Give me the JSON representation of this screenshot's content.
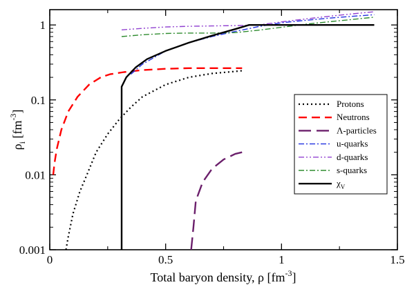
{
  "chart_data": {
    "type": "line",
    "xlabel": "Total baryon density, ρ [fm",
    "xlabel_sup": "-3",
    "xlabel_close": "]",
    "ylabel": "ρ",
    "ylabel_sub": "i",
    "ylabel_unit": " [fm",
    "ylabel_sup": "-3",
    "ylabel_close": "]",
    "xlim": [
      0,
      1.5
    ],
    "ylim": [
      0.001,
      1.6
    ],
    "yscale": "log",
    "grid": false,
    "legend_position": "right",
    "x_ticks": [
      {
        "value": 0,
        "label": "0"
      },
      {
        "value": 0.5,
        "label": "0.5"
      },
      {
        "value": 1,
        "label": "1"
      },
      {
        "value": 1.5,
        "label": "1.5"
      }
    ],
    "y_ticks": [
      {
        "value": 0.001,
        "label": "0.001"
      },
      {
        "value": 0.01,
        "label": "0.01"
      },
      {
        "value": 0.1,
        "label": "0.1"
      },
      {
        "value": 1,
        "label": "1"
      }
    ],
    "series": [
      {
        "name": "Protons",
        "legend_main": "Protons",
        "legend_sub": "",
        "color": "#000000",
        "dash": "2,4",
        "width": 2.2,
        "points": [
          [
            0.07,
            0.001
          ],
          [
            0.08,
            0.0015
          ],
          [
            0.1,
            0.003
          ],
          [
            0.13,
            0.006
          ],
          [
            0.16,
            0.01
          ],
          [
            0.2,
            0.02
          ],
          [
            0.25,
            0.035
          ],
          [
            0.3,
            0.055
          ],
          [
            0.35,
            0.08
          ],
          [
            0.4,
            0.11
          ],
          [
            0.5,
            0.16
          ],
          [
            0.6,
            0.2
          ],
          [
            0.7,
            0.225
          ],
          [
            0.8,
            0.24
          ],
          [
            0.83,
            0.245
          ]
        ]
      },
      {
        "name": "Neutrons",
        "legend_main": "Neutrons",
        "legend_sub": "",
        "color": "#ff0000",
        "dash": "12,7",
        "width": 2.4,
        "points": [
          [
            0.015,
            0.01
          ],
          [
            0.02,
            0.014
          ],
          [
            0.03,
            0.022
          ],
          [
            0.05,
            0.04
          ],
          [
            0.08,
            0.07
          ],
          [
            0.12,
            0.11
          ],
          [
            0.17,
            0.16
          ],
          [
            0.22,
            0.2
          ],
          [
            0.26,
            0.22
          ],
          [
            0.32,
            0.235
          ],
          [
            0.4,
            0.25
          ],
          [
            0.5,
            0.26
          ],
          [
            0.6,
            0.265
          ],
          [
            0.7,
            0.265
          ],
          [
            0.83,
            0.265
          ]
        ]
      },
      {
        "name": "Λ-particles",
        "legend_main": "Λ-particles",
        "legend_sub": "",
        "color": "#6b1f6b",
        "dash": "18,8",
        "width": 2.4,
        "points": [
          [
            0.61,
            0.001
          ],
          [
            0.62,
            0.002
          ],
          [
            0.63,
            0.0045
          ],
          [
            0.66,
            0.008
          ],
          [
            0.7,
            0.012
          ],
          [
            0.75,
            0.016
          ],
          [
            0.8,
            0.019
          ],
          [
            0.83,
            0.02
          ]
        ]
      },
      {
        "name": "u-quarks",
        "legend_main": "u-quarks",
        "legend_sub": "",
        "color": "#1f2fe0",
        "dash": "8,3,2,3",
        "width": 1.4,
        "points": [
          [
            0.35,
            0.22
          ],
          [
            0.4,
            0.3
          ],
          [
            0.5,
            0.45
          ],
          [
            0.6,
            0.58
          ],
          [
            0.7,
            0.7
          ],
          [
            0.8,
            0.82
          ],
          [
            0.9,
            0.95
          ],
          [
            1,
            1.07
          ],
          [
            1.1,
            1.15
          ],
          [
            1.2,
            1.23
          ],
          [
            1.3,
            1.3
          ],
          [
            1.4,
            1.37
          ]
        ]
      },
      {
        "name": "d-quarks",
        "legend_main": "d-quarks",
        "legend_sub": "",
        "color": "#9040d0",
        "dash": "8,3,2,3,2,3",
        "width": 1.4,
        "points": [
          [
            0.31,
            0.86
          ],
          [
            0.4,
            0.9
          ],
          [
            0.5,
            0.94
          ],
          [
            0.6,
            0.96
          ],
          [
            0.7,
            0.97
          ],
          [
            0.8,
            0.98
          ],
          [
            0.9,
            1.0
          ],
          [
            1,
            1.1
          ],
          [
            1.1,
            1.2
          ],
          [
            1.2,
            1.3
          ],
          [
            1.3,
            1.4
          ],
          [
            1.4,
            1.5
          ]
        ]
      },
      {
        "name": "s-quarks",
        "legend_main": "s-quarks",
        "legend_sub": "",
        "color": "#2e8b2e",
        "dash": "8,3,2,3",
        "width": 1.4,
        "points": [
          [
            0.31,
            0.7
          ],
          [
            0.4,
            0.74
          ],
          [
            0.5,
            0.77
          ],
          [
            0.6,
            0.78
          ],
          [
            0.7,
            0.78
          ],
          [
            0.8,
            0.79
          ],
          [
            0.9,
            0.85
          ],
          [
            1,
            0.93
          ],
          [
            1.1,
            1.02
          ],
          [
            1.2,
            1.1
          ],
          [
            1.3,
            1.18
          ],
          [
            1.4,
            1.27
          ]
        ]
      },
      {
        "name": "χV",
        "legend_main": "χ",
        "legend_sub": "V",
        "color": "#000000",
        "dash": "",
        "width": 2.4,
        "points": [
          [
            0.31,
            0.001
          ],
          [
            0.31,
            0.15
          ],
          [
            0.33,
            0.2
          ],
          [
            0.37,
            0.27
          ],
          [
            0.42,
            0.35
          ],
          [
            0.5,
            0.45
          ],
          [
            0.6,
            0.58
          ],
          [
            0.7,
            0.72
          ],
          [
            0.8,
            0.88
          ],
          [
            0.86,
            1.0
          ],
          [
            1,
            1.0
          ],
          [
            1.2,
            1.0
          ],
          [
            1.4,
            1.0
          ]
        ]
      }
    ]
  }
}
